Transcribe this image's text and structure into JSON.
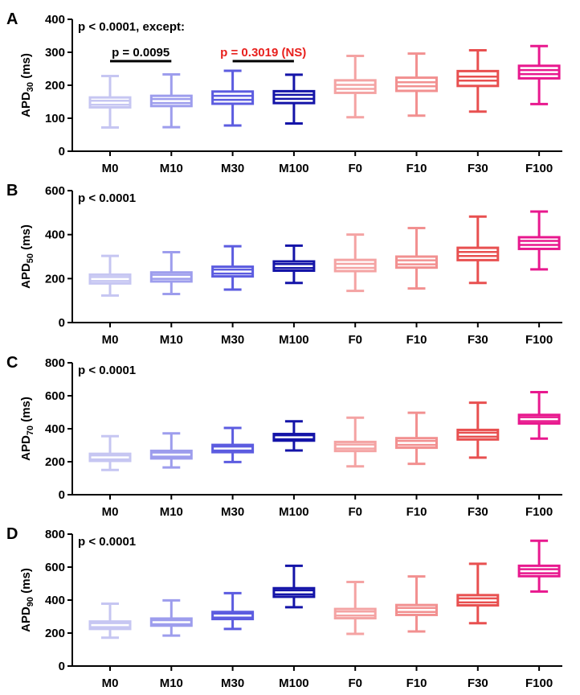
{
  "chart_data": [
    {
      "type": "box",
      "panel_letter": "A",
      "annotation": "p < 0.0001, except:",
      "ylabel_main": "APD",
      "ylabel_sub": "30",
      "ylabel_unit": " (ms)",
      "ylim": [
        0,
        400
      ],
      "yticks": [
        "0",
        "100",
        "200",
        "300",
        "400"
      ],
      "categories": [
        "M0",
        "M10",
        "M30",
        "M100",
        "F0",
        "F10",
        "F30",
        "F100"
      ],
      "boxes": [
        {
          "min": 72,
          "q1": 133,
          "median": 147,
          "q3": 163,
          "max": 228
        },
        {
          "min": 73,
          "q1": 137,
          "median": 152,
          "q3": 168,
          "max": 233
        },
        {
          "min": 78,
          "q1": 144,
          "median": 162,
          "q3": 181,
          "max": 244
        },
        {
          "min": 84,
          "q1": 146,
          "median": 165,
          "q3": 182,
          "max": 232
        },
        {
          "min": 103,
          "q1": 177,
          "median": 195,
          "q3": 215,
          "max": 289
        },
        {
          "min": 108,
          "q1": 183,
          "median": 203,
          "q3": 223,
          "max": 296
        },
        {
          "min": 120,
          "q1": 198,
          "median": 220,
          "q3": 243,
          "max": 306
        },
        {
          "min": 143,
          "q1": 221,
          "median": 240,
          "q3": 259,
          "max": 319
        }
      ],
      "comparisons": [
        {
          "from": 0,
          "to": 1,
          "label": "p = 0.0095",
          "color": "#000000"
        },
        {
          "from": 2,
          "to": 3,
          "label": "p = 0.3019 (NS)",
          "color": "#e8201d"
        }
      ]
    },
    {
      "type": "box",
      "panel_letter": "B",
      "annotation": "p < 0.0001",
      "ylabel_main": "APD",
      "ylabel_sub": "50",
      "ylabel_unit": " (ms)",
      "ylim": [
        0,
        600
      ],
      "yticks": [
        "0",
        "200",
        "400",
        "600"
      ],
      "categories": [
        "M0",
        "M10",
        "M30",
        "M100",
        "F0",
        "F10",
        "F30",
        "F100"
      ],
      "boxes": [
        {
          "min": 123,
          "q1": 178,
          "median": 198,
          "q3": 218,
          "max": 303
        },
        {
          "min": 130,
          "q1": 187,
          "median": 208,
          "q3": 228,
          "max": 320
        },
        {
          "min": 150,
          "q1": 210,
          "median": 232,
          "q3": 254,
          "max": 347
        },
        {
          "min": 180,
          "q1": 236,
          "median": 257,
          "q3": 278,
          "max": 350
        },
        {
          "min": 144,
          "q1": 234,
          "median": 258,
          "q3": 285,
          "max": 400
        },
        {
          "min": 155,
          "q1": 250,
          "median": 274,
          "q3": 300,
          "max": 430
        },
        {
          "min": 180,
          "q1": 284,
          "median": 312,
          "q3": 340,
          "max": 482
        },
        {
          "min": 242,
          "q1": 335,
          "median": 362,
          "q3": 388,
          "max": 505
        }
      ],
      "comparisons": []
    },
    {
      "type": "box",
      "panel_letter": "C",
      "annotation": "p < 0.0001",
      "ylabel_main": "APD",
      "ylabel_sub": "70",
      "ylabel_unit": " (ms)",
      "ylim": [
        0,
        800
      ],
      "yticks": [
        "0",
        "200",
        "400",
        "600",
        "800"
      ],
      "categories": [
        "M0",
        "M10",
        "M30",
        "M100",
        "F0",
        "F10",
        "F30",
        "F100"
      ],
      "boxes": [
        {
          "min": 150,
          "q1": 205,
          "median": 226,
          "q3": 248,
          "max": 355
        },
        {
          "min": 165,
          "q1": 220,
          "median": 243,
          "q3": 266,
          "max": 372
        },
        {
          "min": 198,
          "q1": 258,
          "median": 280,
          "q3": 302,
          "max": 405
        },
        {
          "min": 268,
          "q1": 328,
          "median": 348,
          "q3": 368,
          "max": 445
        },
        {
          "min": 172,
          "q1": 265,
          "median": 292,
          "q3": 320,
          "max": 467
        },
        {
          "min": 187,
          "q1": 285,
          "median": 314,
          "q3": 343,
          "max": 497
        },
        {
          "min": 225,
          "q1": 335,
          "median": 364,
          "q3": 393,
          "max": 558
        },
        {
          "min": 340,
          "q1": 432,
          "median": 458,
          "q3": 484,
          "max": 622
        }
      ],
      "comparisons": []
    },
    {
      "type": "box",
      "panel_letter": "D",
      "annotation": "p < 0.0001",
      "ylabel_main": "APD",
      "ylabel_sub": "90",
      "ylabel_unit": " (ms)",
      "ylim": [
        0,
        800
      ],
      "yticks": [
        "0",
        "200",
        "400",
        "600",
        "800"
      ],
      "categories": [
        "M0",
        "M10",
        "M30",
        "M100",
        "F0",
        "F10",
        "F30",
        "F100"
      ],
      "boxes": [
        {
          "min": 172,
          "q1": 225,
          "median": 248,
          "q3": 270,
          "max": 378
        },
        {
          "min": 185,
          "q1": 245,
          "median": 266,
          "q3": 288,
          "max": 398
        },
        {
          "min": 225,
          "q1": 285,
          "median": 306,
          "q3": 328,
          "max": 442
        },
        {
          "min": 357,
          "q1": 420,
          "median": 447,
          "q3": 472,
          "max": 608
        },
        {
          "min": 195,
          "q1": 290,
          "median": 318,
          "q3": 346,
          "max": 510
        },
        {
          "min": 210,
          "q1": 310,
          "median": 340,
          "q3": 370,
          "max": 543
        },
        {
          "min": 260,
          "q1": 368,
          "median": 398,
          "q3": 430,
          "max": 620
        },
        {
          "min": 452,
          "q1": 545,
          "median": 575,
          "q3": 608,
          "max": 760
        }
      ],
      "comparisons": []
    }
  ],
  "series_colors": [
    "#c6c6f2",
    "#9d9ded",
    "#5c5ce0",
    "#1414a8",
    "#f4a3a3",
    "#f29090",
    "#e85050",
    "#e8188e"
  ]
}
